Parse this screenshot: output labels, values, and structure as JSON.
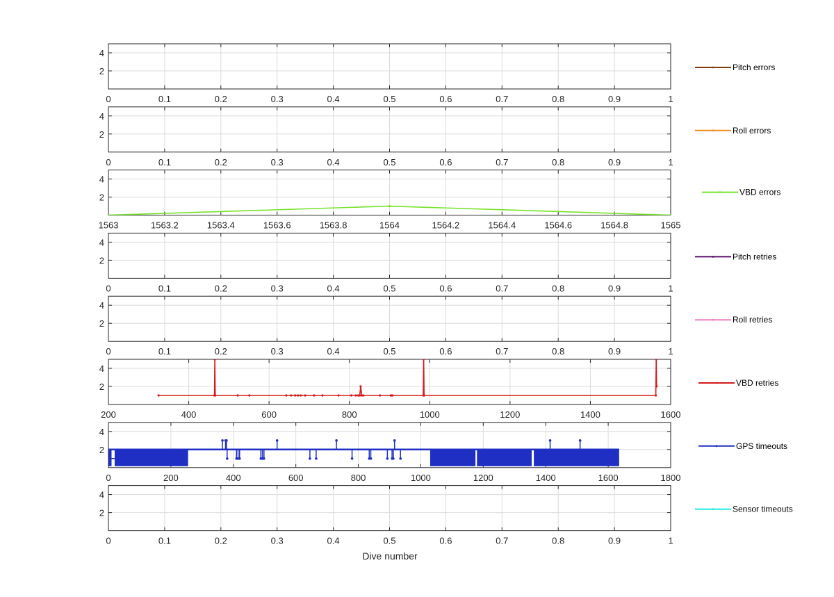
{
  "figure": {
    "xlabel": "Dive number"
  },
  "chart_data": [
    {
      "type": "line",
      "series": [
        {
          "name": "Pitch errors",
          "color": "#7f3f12",
          "x": [],
          "y": []
        }
      ],
      "xlim": [
        0,
        1
      ],
      "ylim": [
        0,
        5
      ],
      "xticks": [
        0,
        0.1,
        0.2,
        0.3,
        0.4,
        0.5,
        0.6,
        0.7,
        0.8,
        0.9,
        1
      ],
      "xtick_labels": [
        "0",
        "0.1",
        "0.2",
        "0.3",
        "0.4",
        "0.5",
        "0.6",
        "0.7",
        "0.8",
        "0.9",
        "1"
      ],
      "yticks": [
        2,
        4
      ],
      "ytick_labels": [
        "2",
        "4"
      ],
      "grid": true,
      "legend": "right"
    },
    {
      "type": "line",
      "series": [
        {
          "name": "Roll errors",
          "color": "#f08a1e",
          "x": [],
          "y": []
        }
      ],
      "xlim": [
        0,
        1
      ],
      "ylim": [
        0,
        5
      ],
      "xticks": [
        0,
        0.1,
        0.2,
        0.3,
        0.4,
        0.5,
        0.6,
        0.7,
        0.8,
        0.9,
        1
      ],
      "xtick_labels": [
        "0",
        "0.1",
        "0.2",
        "0.3",
        "0.4",
        "0.5",
        "0.6",
        "0.7",
        "0.8",
        "0.9",
        "1"
      ],
      "yticks": [
        2,
        4
      ],
      "ytick_labels": [
        "2",
        "4"
      ],
      "grid": true,
      "legend": "right"
    },
    {
      "type": "line",
      "series": [
        {
          "name": "VBD errors",
          "color": "#76e22a",
          "x": [
            1563,
            1564,
            1565
          ],
          "y": [
            0,
            1,
            0
          ]
        }
      ],
      "xlim": [
        1563,
        1565
      ],
      "ylim": [
        0,
        5
      ],
      "xticks": [
        1563,
        1563.2,
        1563.4,
        1563.6,
        1563.8,
        1564,
        1564.2,
        1564.4,
        1564.6,
        1564.8,
        1565
      ],
      "xtick_labels": [
        "1563",
        "1563.2",
        "1563.4",
        "1563.6",
        "1563.8",
        "1564",
        "1564.2",
        "1564.4",
        "1564.6",
        "1564.8",
        "1565"
      ],
      "yticks": [
        2,
        4
      ],
      "ytick_labels": [
        "2",
        "4"
      ],
      "grid": true,
      "legend": "right"
    },
    {
      "type": "line",
      "series": [
        {
          "name": "Pitch retries",
          "color": "#5c0f6e",
          "x": [],
          "y": []
        }
      ],
      "xlim": [
        0,
        1
      ],
      "ylim": [
        0,
        5
      ],
      "xticks": [
        0,
        0.1,
        0.2,
        0.3,
        0.4,
        0.5,
        0.6,
        0.7,
        0.8,
        0.9,
        1
      ],
      "xtick_labels": [
        "0",
        "0.1",
        "0.2",
        "0.3",
        "0.4",
        "0.5",
        "0.6",
        "0.7",
        "0.8",
        "0.9",
        "1"
      ],
      "yticks": [
        2,
        4
      ],
      "ytick_labels": [
        "2",
        "4"
      ],
      "grid": true,
      "legend": "right"
    },
    {
      "type": "line",
      "series": [
        {
          "name": "Roll retries",
          "color": "#f07fc4",
          "x": [],
          "y": []
        }
      ],
      "xlim": [
        0,
        1
      ],
      "ylim": [
        0,
        5
      ],
      "xticks": [
        0,
        0.1,
        0.2,
        0.3,
        0.4,
        0.5,
        0.6,
        0.7,
        0.8,
        0.9,
        1
      ],
      "xtick_labels": [
        "0",
        "0.1",
        "0.2",
        "0.3",
        "0.4",
        "0.5",
        "0.6",
        "0.7",
        "0.8",
        "0.9",
        "1"
      ],
      "yticks": [
        2,
        4
      ],
      "ytick_labels": [
        "2",
        "4"
      ],
      "grid": true,
      "legend": "right"
    },
    {
      "type": "line",
      "series": [
        {
          "name": "VBD retries",
          "color": "#d41a1a",
          "x": [
            325,
            464,
            465,
            466,
            522,
            551,
            643,
            655,
            665,
            672,
            679,
            690,
            712,
            733,
            773,
            805,
            816,
            822,
            826,
            828,
            831,
            835,
            876,
            903,
            905,
            907,
            984,
            985,
            986,
            1563,
            1564,
            1565
          ],
          "y": [
            1,
            1,
            5,
            1,
            1,
            1,
            1,
            1,
            1,
            1,
            1,
            1,
            1,
            1,
            1,
            1,
            1,
            1,
            1,
            2,
            1,
            1,
            1,
            1,
            1,
            1,
            1,
            5,
            1,
            1,
            5,
            2
          ]
        }
      ],
      "xlim": [
        200,
        1600
      ],
      "ylim": [
        0,
        5
      ],
      "xticks": [
        200,
        400,
        600,
        800,
        1000,
        1200,
        1400,
        1600
      ],
      "xtick_labels": [
        "200",
        "400",
        "600",
        "800",
        "1000",
        "1200",
        "1400",
        "1600"
      ],
      "yticks": [
        2,
        4
      ],
      "ytick_labels": [
        "2",
        "4"
      ],
      "grid": true,
      "legend": "right"
    },
    {
      "type": "line",
      "series": [
        {
          "name": "GPS timeouts",
          "color": "#1f2fc4",
          "x_range": [
            1,
            1635
          ],
          "baseline": 2,
          "low_value": 1,
          "dense_segments": [
            [
              1,
              10
            ],
            [
              20,
              255
            ],
            [
              1030,
              1175
            ],
            [
              1180,
              1355
            ],
            [
              1362,
              1635
            ]
          ],
          "spikes_high": [
            {
              "x": 365,
              "y": 3
            },
            {
              "x": 375,
              "y": 3
            },
            {
              "x": 378,
              "y": 3
            },
            {
              "x": 540,
              "y": 3
            },
            {
              "x": 730,
              "y": 3
            },
            {
              "x": 916,
              "y": 3
            },
            {
              "x": 1414,
              "y": 3
            },
            {
              "x": 1510,
              "y": 3
            }
          ],
          "spikes_low": [
            {
              "x": 380,
              "y": 1
            },
            {
              "x": 410,
              "y": 1
            },
            {
              "x": 415,
              "y": 1
            },
            {
              "x": 420,
              "y": 1
            },
            {
              "x": 488,
              "y": 1
            },
            {
              "x": 493,
              "y": 1
            },
            {
              "x": 498,
              "y": 1
            },
            {
              "x": 645,
              "y": 1
            },
            {
              "x": 665,
              "y": 1
            },
            {
              "x": 780,
              "y": 1
            },
            {
              "x": 835,
              "y": 1
            },
            {
              "x": 840,
              "y": 1
            },
            {
              "x": 893,
              "y": 1
            },
            {
              "x": 908,
              "y": 1
            },
            {
              "x": 912,
              "y": 1
            },
            {
              "x": 935,
              "y": 1
            }
          ]
        }
      ],
      "xlim": [
        0,
        1800
      ],
      "ylim": [
        0,
        5
      ],
      "xticks": [
        0,
        200,
        400,
        600,
        800,
        1000,
        1200,
        1400,
        1600,
        1800
      ],
      "xtick_labels": [
        "0",
        "200",
        "400",
        "600",
        "800",
        "1000",
        "1200",
        "1400",
        "1600",
        "1800"
      ],
      "yticks": [
        2,
        4
      ],
      "ytick_labels": [
        "2",
        "4"
      ],
      "grid": true,
      "legend": "right"
    },
    {
      "type": "line",
      "series": [
        {
          "name": "Sensor timeouts",
          "color": "#1fe6e6",
          "x": [],
          "y": []
        }
      ],
      "xlim": [
        0,
        1
      ],
      "ylim": [
        0,
        5
      ],
      "xticks": [
        0,
        0.1,
        0.2,
        0.3,
        0.4,
        0.5,
        0.6,
        0.7,
        0.8,
        0.9,
        1
      ],
      "xtick_labels": [
        "0",
        "0.1",
        "0.2",
        "0.3",
        "0.4",
        "0.5",
        "0.6",
        "0.7",
        "0.8",
        "0.9",
        "1"
      ],
      "yticks": [
        2,
        4
      ],
      "ytick_labels": [
        "2",
        "4"
      ],
      "grid": true,
      "legend": "right"
    }
  ]
}
